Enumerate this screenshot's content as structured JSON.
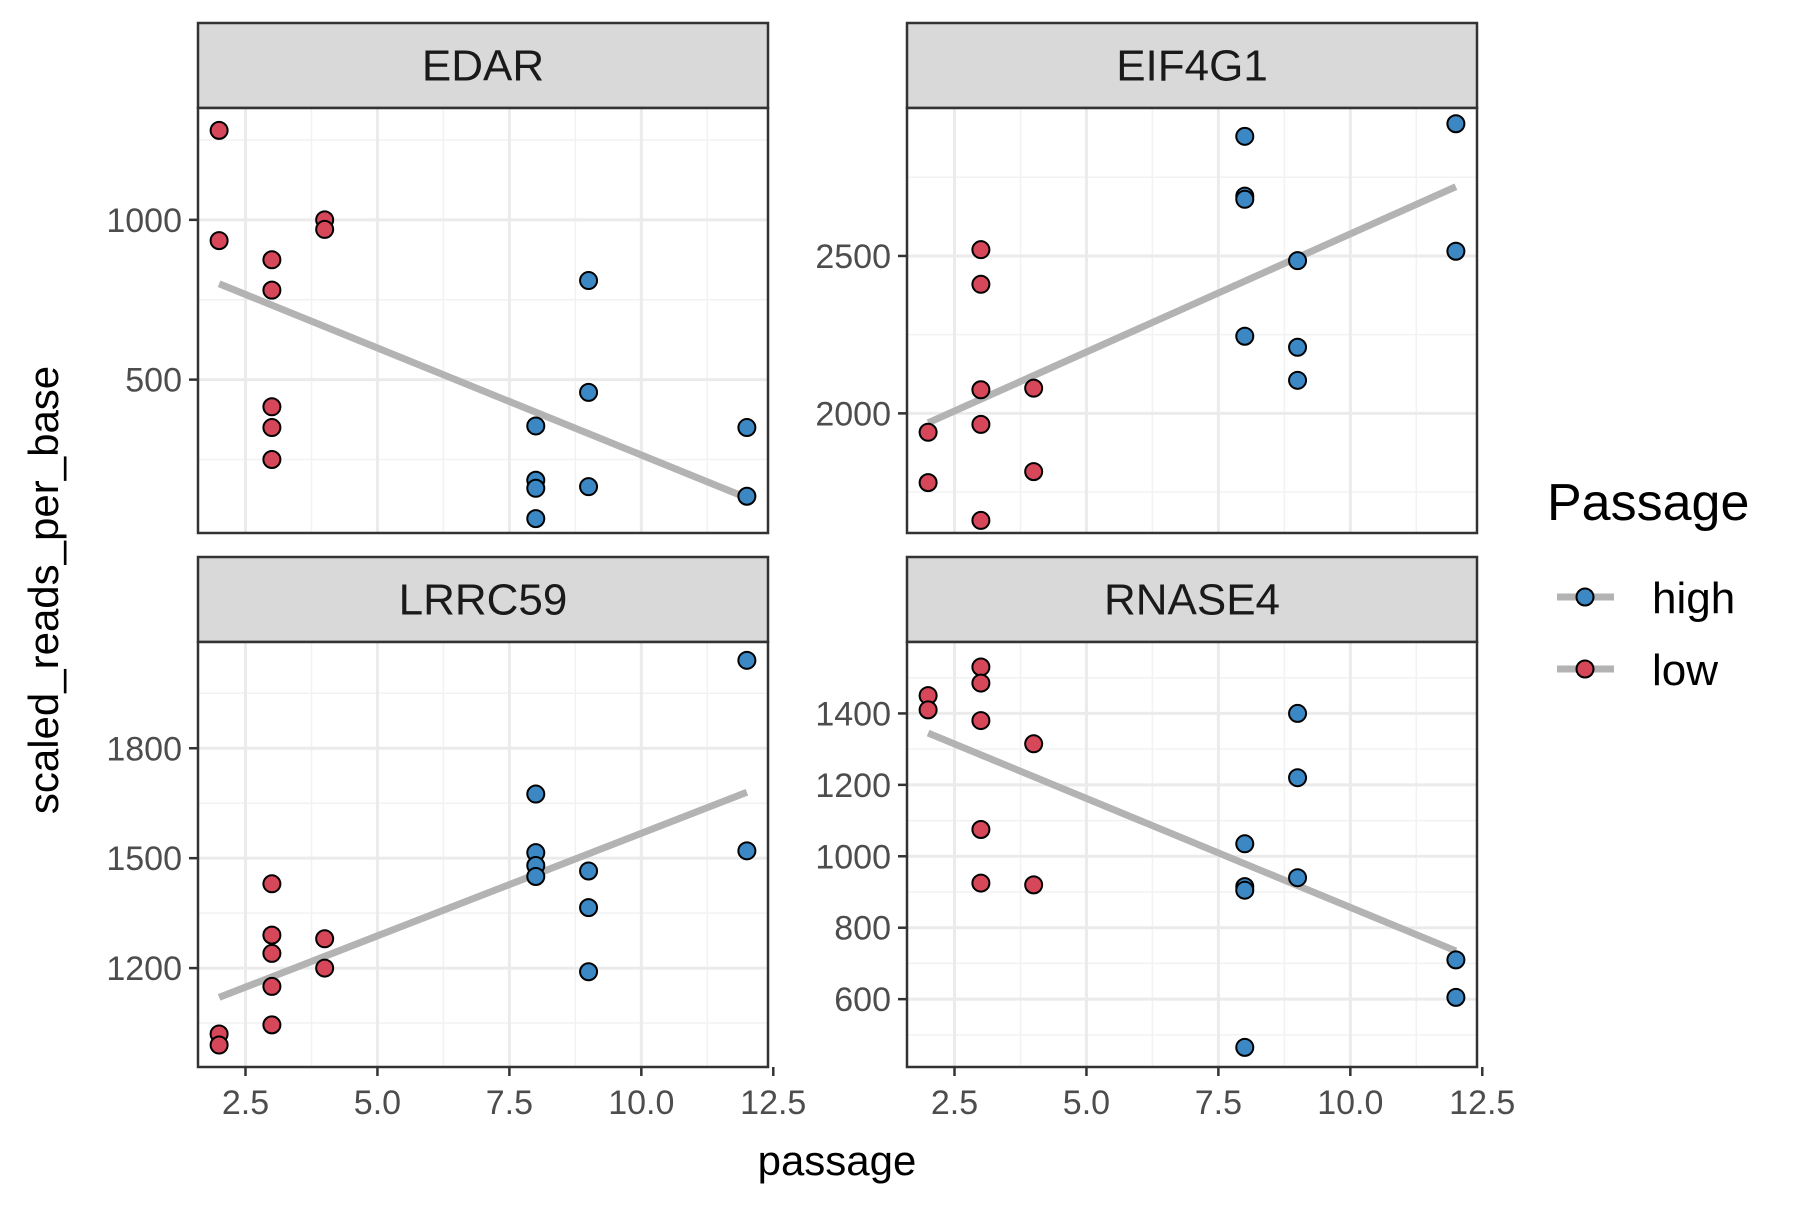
{
  "chart_data": {
    "type": "scatter",
    "xlabel": "passage",
    "ylabel": "scaled_reads_per_base",
    "xlim": [
      1.6,
      12.4
    ],
    "x_ticks": [
      2.5,
      5.0,
      7.5,
      10.0,
      12.5
    ],
    "x_tick_labels": [
      "2.5",
      "5.0",
      "7.5",
      "10.0",
      "12.5"
    ],
    "grid": true,
    "colors": {
      "high": "#3C88C4",
      "low": "#D64759",
      "trend": "#b3b3b3"
    },
    "legend": {
      "title": "Passage",
      "placement": "right",
      "entries": [
        {
          "key": "high",
          "label": "high",
          "color": "#3C88C4"
        },
        {
          "key": "low",
          "label": "low",
          "color": "#D64759"
        }
      ]
    },
    "panels": [
      {
        "title": "EDAR",
        "ylim": [
          20,
          1350
        ],
        "y_ticks": [
          500,
          1000
        ],
        "y_tick_labels": [
          "500",
          "1000"
        ],
        "trend": {
          "x": [
            2,
            12
          ],
          "y": [
            800,
            130
          ]
        },
        "series": [
          {
            "key": "low",
            "points": [
              [
                2,
                1280
              ],
              [
                2,
                935
              ],
              [
                3,
                875
              ],
              [
                3,
                780
              ],
              [
                3,
                415
              ],
              [
                3,
                350
              ],
              [
                3,
                250
              ],
              [
                4,
                1000
              ],
              [
                4,
                970
              ]
            ]
          },
          {
            "key": "high",
            "points": [
              [
                8,
                355
              ],
              [
                8,
                185
              ],
              [
                8,
                160
              ],
              [
                8,
                65
              ],
              [
                9,
                810
              ],
              [
                9,
                460
              ],
              [
                9,
                165
              ],
              [
                12,
                350
              ],
              [
                12,
                135
              ]
            ]
          }
        ]
      },
      {
        "title": "EIF4G1",
        "ylim": [
          1620,
          2970
        ],
        "y_ticks": [
          2000,
          2500
        ],
        "y_tick_labels": [
          "2000",
          "2500"
        ],
        "trend": {
          "x": [
            2,
            12
          ],
          "y": [
            1970,
            2720
          ]
        },
        "series": [
          {
            "key": "low",
            "points": [
              [
                2,
                1940
              ],
              [
                2,
                1780
              ],
              [
                3,
                2520
              ],
              [
                3,
                2410
              ],
              [
                3,
                2075
              ],
              [
                3,
                1965
              ],
              [
                3,
                1660
              ],
              [
                4,
                2080
              ],
              [
                4,
                1815
              ]
            ]
          },
          {
            "key": "high",
            "points": [
              [
                8,
                2880
              ],
              [
                8,
                2690
              ],
              [
                8,
                2680
              ],
              [
                8,
                2245
              ],
              [
                9,
                2485
              ],
              [
                9,
                2210
              ],
              [
                9,
                2105
              ],
              [
                12,
                2920
              ],
              [
                12,
                2515
              ]
            ]
          }
        ]
      },
      {
        "title": "LRRC59",
        "ylim": [
          930,
          2090
        ],
        "y_ticks": [
          1200,
          1500,
          1800
        ],
        "y_tick_labels": [
          "1200",
          "1500",
          "1800"
        ],
        "trend": {
          "x": [
            2,
            12
          ],
          "y": [
            1120,
            1680
          ]
        },
        "series": [
          {
            "key": "low",
            "points": [
              [
                2,
                1020
              ],
              [
                2,
                990
              ],
              [
                3,
                1430
              ],
              [
                3,
                1290
              ],
              [
                3,
                1240
              ],
              [
                3,
                1150
              ],
              [
                3,
                1045
              ],
              [
                4,
                1280
              ],
              [
                4,
                1200
              ]
            ]
          },
          {
            "key": "high",
            "points": [
              [
                8,
                1675
              ],
              [
                8,
                1515
              ],
              [
                8,
                1480
              ],
              [
                8,
                1450
              ],
              [
                9,
                1465
              ],
              [
                9,
                1365
              ],
              [
                9,
                1190
              ],
              [
                12,
                2040
              ],
              [
                12,
                1520
              ]
            ]
          }
        ]
      },
      {
        "title": "RNASE4",
        "ylim": [
          410,
          1600
        ],
        "y_ticks": [
          600,
          800,
          1000,
          1200,
          1400
        ],
        "y_tick_labels": [
          "600",
          "800",
          "1000",
          "1200",
          "1400"
        ],
        "trend": {
          "x": [
            2,
            12
          ],
          "y": [
            1345,
            735
          ]
        },
        "series": [
          {
            "key": "low",
            "points": [
              [
                2,
                1450
              ],
              [
                2,
                1410
              ],
              [
                3,
                1530
              ],
              [
                3,
                1485
              ],
              [
                3,
                1380
              ],
              [
                3,
                1075
              ],
              [
                3,
                925
              ],
              [
                4,
                1315
              ],
              [
                4,
                920
              ]
            ]
          },
          {
            "key": "high",
            "points": [
              [
                8,
                1035
              ],
              [
                8,
                915
              ],
              [
                8,
                905
              ],
              [
                8,
                465
              ],
              [
                9,
                1400
              ],
              [
                9,
                1220
              ],
              [
                9,
                940
              ],
              [
                12,
                710
              ],
              [
                12,
                605
              ]
            ]
          }
        ]
      }
    ]
  }
}
